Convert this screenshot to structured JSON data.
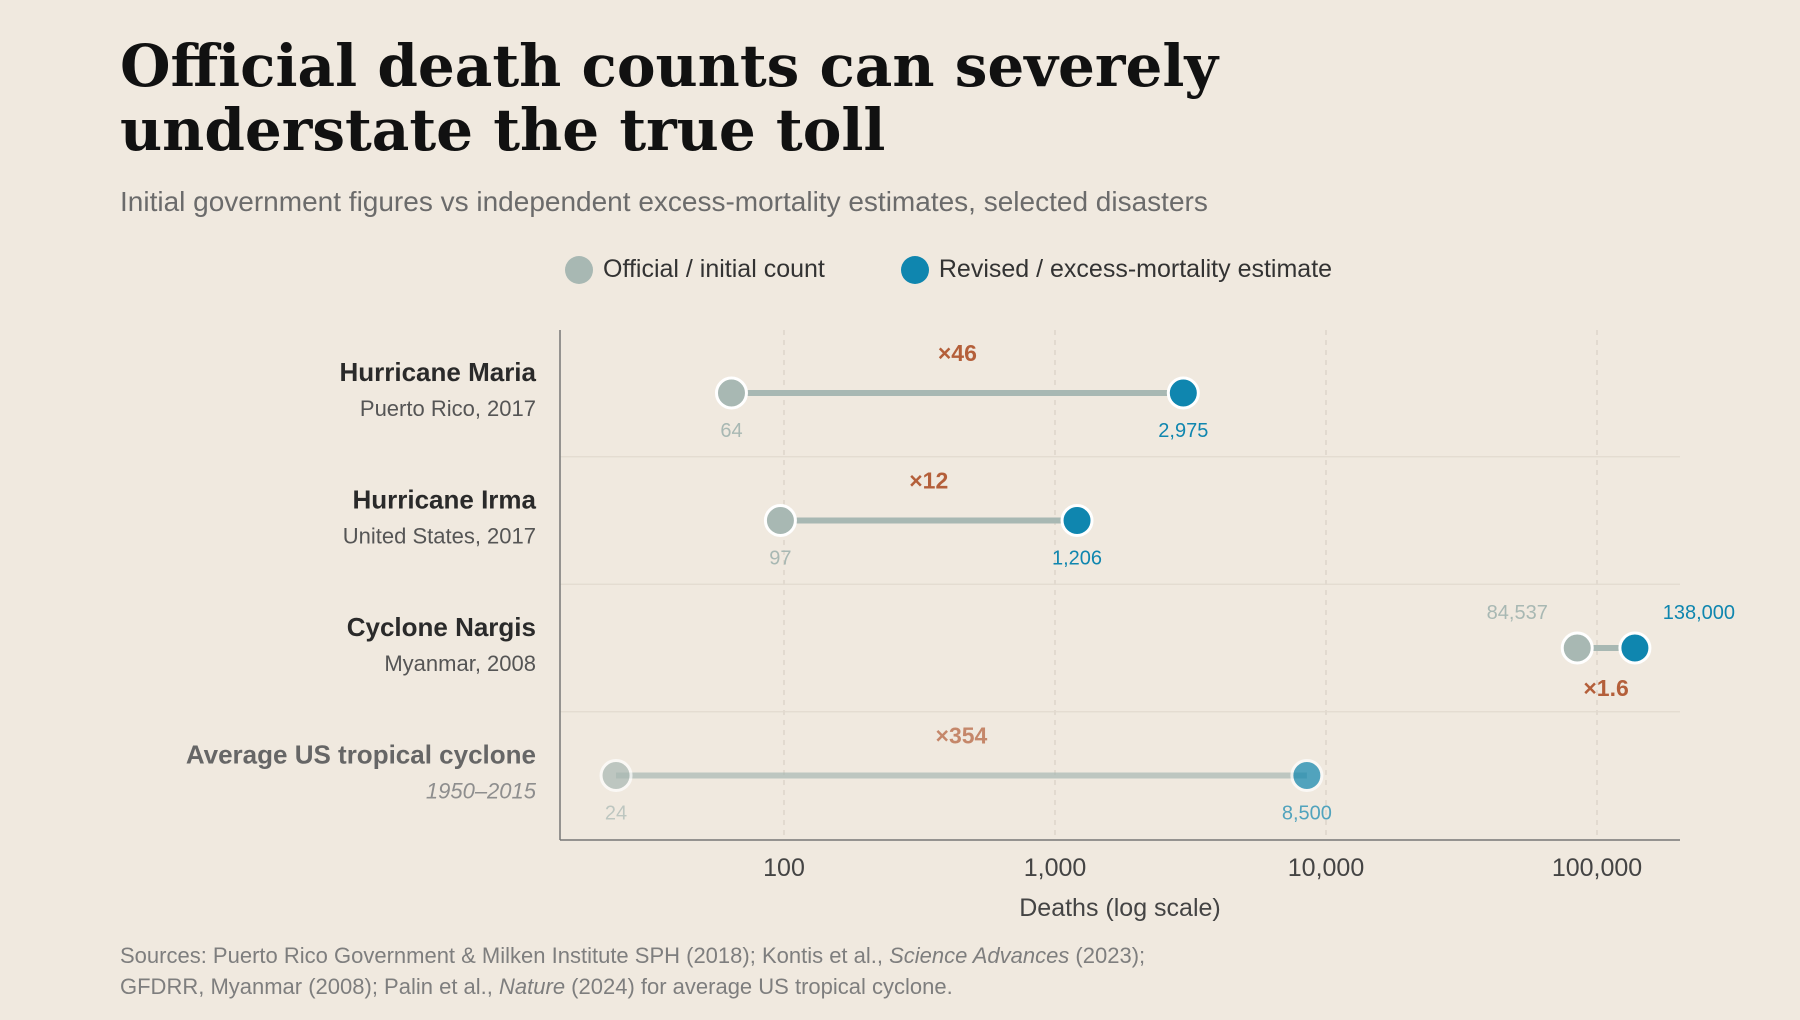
{
  "title_line1": "Official death counts can severely",
  "title_line2": "understate the true toll",
  "subtitle": "Initial government figures vs independent excess-mortality estimates, selected disasters",
  "legend": {
    "official": "Official / initial count",
    "revised": "Revised / excess-mortality estimate"
  },
  "colors": {
    "background": "#f0e9df",
    "official": "#a8b8b3",
    "revised": "#0f86af",
    "multiplier": "#b45f3a"
  },
  "source": {
    "line1_a": "Sources: Puerto Rico Government & Milken Institute SPH (2018); Kontis et al., ",
    "line1_em": "Science Advances",
    "line1_b": " (2023);",
    "line2_a": "GFDRR, Myanmar (2008); Palin et al., ",
    "line2_em": "Nature",
    "line2_b": " (2024) for average US tropical cyclone."
  },
  "chart_data": {
    "type": "dumbbell",
    "x_scale": "log",
    "xlim": [
      17,
      200000
    ],
    "xlabel": "Deaths (log scale)",
    "x_ticks": [
      100,
      1000,
      10000,
      100000
    ],
    "x_tick_labels": [
      "100",
      "1,000",
      "10,000",
      "100,000"
    ],
    "grid": "vertical dashed at ticks",
    "rows": [
      {
        "name": "Hurricane Maria",
        "detail": "Puerto Rico, 2017",
        "official": 64,
        "official_label": "64",
        "revised": 2975,
        "revised_label": "2,975",
        "multiplier": "×46",
        "muted": false
      },
      {
        "name": "Hurricane Irma",
        "detail": "United States, 2017",
        "official": 97,
        "official_label": "97",
        "revised": 1206,
        "revised_label": "1,206",
        "multiplier": "×12",
        "muted": false
      },
      {
        "name": "Cyclone Nargis",
        "detail": "Myanmar, 2008",
        "official": 84537,
        "official_label": "84,537",
        "revised": 138000,
        "revised_label": "138,000",
        "multiplier": "×1.6",
        "muted": false
      },
      {
        "name": "Average US tropical cyclone",
        "detail": "1950–2015",
        "official": 24,
        "official_label": "24",
        "revised": 8500,
        "revised_label": "8,500",
        "multiplier": "×354",
        "muted": true
      }
    ]
  }
}
